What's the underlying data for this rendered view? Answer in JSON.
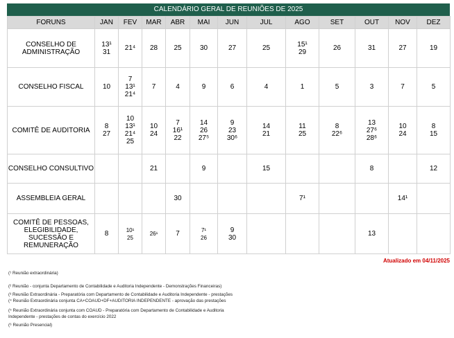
{
  "title": "CALENDÁRIO GERAL DE REUNIÕES DE 2025",
  "table": {
    "header": [
      "FORUNS",
      "JAN",
      "FEV",
      "MAR",
      "ABR",
      "MAI",
      "JUN",
      "JUL",
      "AGO",
      "SET",
      "OUT",
      "NOV",
      "DEZ"
    ],
    "rows": [
      {
        "label": [
          "CONSELHO DE",
          "ADMINISTRAÇÃO"
        ],
        "cells": [
          [
            "13¹",
            "31"
          ],
          [
            "21⁴"
          ],
          [
            "28"
          ],
          [
            "25"
          ],
          [
            "30"
          ],
          [
            "27"
          ],
          [
            "25"
          ],
          [
            "15¹",
            "29"
          ],
          [
            "26"
          ],
          [
            "31"
          ],
          [
            "27"
          ],
          [
            "19"
          ]
        ]
      },
      {
        "label": [
          "CONSELHO FISCAL"
        ],
        "cells": [
          [
            "10"
          ],
          [
            "7",
            "13¹",
            "21⁴"
          ],
          [
            "7"
          ],
          [
            "4"
          ],
          [
            "9"
          ],
          [
            "6"
          ],
          [
            "4"
          ],
          [
            "1"
          ],
          [
            "5"
          ],
          [
            "3"
          ],
          [
            "7"
          ],
          [
            "5"
          ]
        ]
      },
      {
        "label": [
          "COMITÊ DE AUDITORIA"
        ],
        "cells": [
          [
            "8",
            "27"
          ],
          [
            "10",
            "13¹",
            "21⁴",
            "25"
          ],
          [
            "10",
            "24"
          ],
          [
            "7",
            "16¹",
            "22"
          ],
          [
            "14",
            "26",
            "27⁵"
          ],
          [
            "9",
            "23",
            "30⁶"
          ],
          [
            "14",
            "21"
          ],
          [
            "11",
            "25"
          ],
          [
            "8",
            "22⁶"
          ],
          [
            "13",
            "27⁶",
            "28⁶"
          ],
          [
            "10",
            "24"
          ],
          [
            "8",
            "15"
          ]
        ]
      },
      {
        "label": [
          "CONSELHO CONSULTIVO"
        ],
        "cells": [
          [],
          [],
          [
            "21"
          ],
          [],
          [
            "9"
          ],
          [],
          [
            "15"
          ],
          [],
          [],
          [
            "8"
          ],
          [],
          [
            "12"
          ]
        ]
      },
      {
        "label": [
          "ASSEMBLEIA GERAL"
        ],
        "cells": [
          [],
          [],
          [],
          [
            "30"
          ],
          [],
          [],
          [],
          [
            "7¹"
          ],
          [],
          [],
          [
            "14¹"
          ],
          []
        ]
      },
      {
        "label": [
          "COMITÊ DE PESSOAS,",
          "ELEGIBILIDADE,",
          "SUCESSÃO E",
          "REMUNERAÇÃO"
        ],
        "cells": [
          [
            "8"
          ],
          [
            "10¹",
            "25"
          ],
          [
            "26¹"
          ],
          [
            "7"
          ],
          [
            "7¹",
            "26"
          ],
          [
            "9",
            "30"
          ],
          [],
          [],
          [],
          [
            "13"
          ],
          [],
          []
        ]
      }
    ]
  },
  "updated": "Atualizado em 04/11/2025",
  "footnotes": [
    [
      "(¹ Reunião extraordinária)"
    ],
    [
      "(² Reunião  - conjunta Departamento de Contabilidade e  Auditoria Independente - Demonstrações Financeiras)"
    ],
    [
      "(³ Reunião Extraordinária - Preparatória com Departamento de Contabilidade e Auditoria Independente - prestações"
    ],
    [
      "(⁴ Reunião Extraordinária conjunta CA+COAUD+DF+AUDITORIA INDEPENDENTE - aprovação das prestações"
    ],
    [
      "(⁵ Reunião Extraordinária conjunta com COAUD - Preparatória com Departamento de Contabilidade e Auditoria",
      "Independente - prestações de contas do exercício 2022"
    ],
    [
      "(⁶ Reunião Presencial)"
    ]
  ]
}
